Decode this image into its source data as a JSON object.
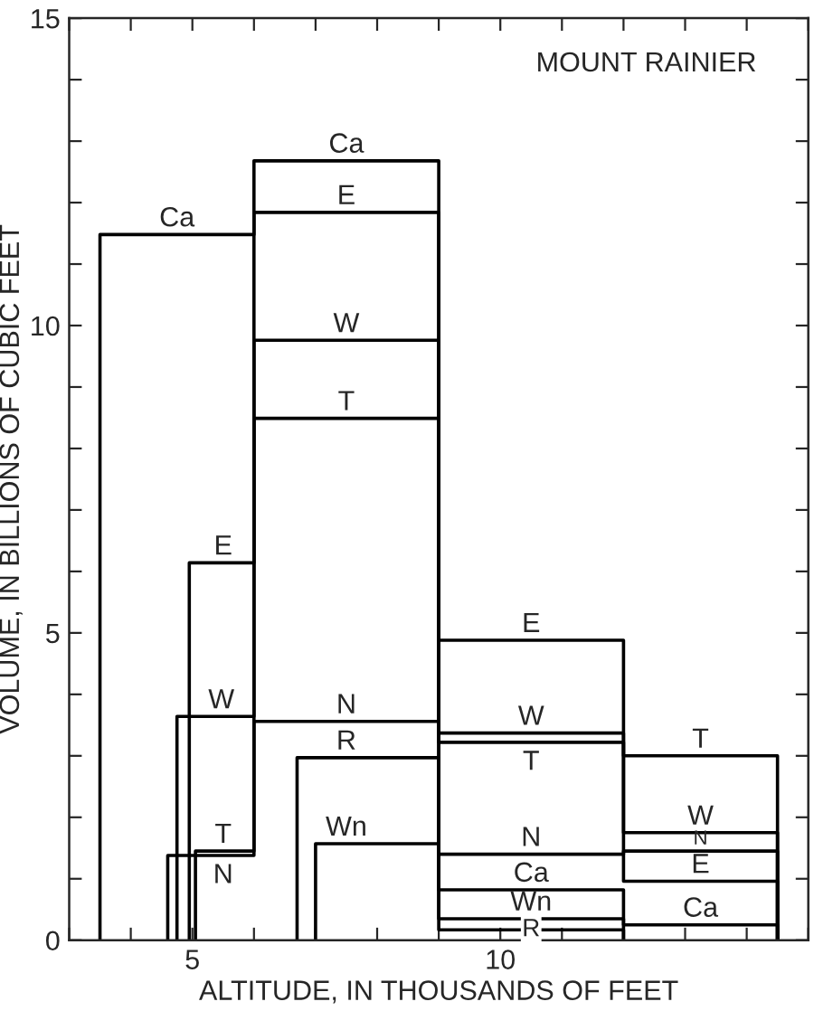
{
  "chart_data": {
    "type": "step",
    "title": "MOUNT RAINIER",
    "xlabel": "ALTITUDE, IN THOUSANDS OF FEET",
    "ylabel": "VOLUME, IN BILLIONS OF CUBIC FEET",
    "xlim": [
      3,
      15
    ],
    "ylim": [
      0,
      15
    ],
    "xticks": [
      {
        "value": 3,
        "label": null
      },
      {
        "value": 4,
        "label": null
      },
      5,
      {
        "value": 6,
        "label": null
      },
      {
        "value": 7,
        "label": null
      },
      {
        "value": 8,
        "label": null
      },
      {
        "value": 9,
        "label": null
      },
      10,
      {
        "value": 11,
        "label": null
      },
      {
        "value": 12,
        "label": null
      },
      {
        "value": 13,
        "label": null
      },
      {
        "value": 14,
        "label": null
      },
      {
        "value": 15,
        "label": null
      }
    ],
    "yticks": [
      0,
      {
        "value": 1,
        "label": null
      },
      {
        "value": 2,
        "label": null
      },
      {
        "value": 3,
        "label": null
      },
      {
        "value": 4,
        "label": null
      },
      5,
      {
        "value": 6,
        "label": null
      },
      {
        "value": 7,
        "label": null
      },
      {
        "value": 8,
        "label": null
      },
      {
        "value": 9,
        "label": null
      },
      10,
      {
        "value": 11,
        "label": null
      },
      {
        "value": 12,
        "label": null
      },
      {
        "value": 13,
        "label": null
      },
      {
        "value": 14,
        "label": null
      },
      15
    ],
    "grid": false,
    "legend": false,
    "series": [
      {
        "color": "#000000",
        "x": [
          3.5,
          3.5,
          6,
          9,
          12,
          14.5
        ],
        "values": [
          0,
          11.48,
          12.68,
          0.82,
          0.25,
          0
        ]
      },
      {
        "color": "#000000",
        "x": [
          4.95,
          4.95,
          6,
          9,
          12,
          14.5
        ],
        "values": [
          0,
          6.14,
          11.84,
          4.88,
          0.96,
          0
        ]
      },
      {
        "color": "#000000",
        "x": [
          4.75,
          4.75,
          6,
          9,
          12,
          14.5
        ],
        "values": [
          0,
          3.64,
          9.76,
          3.37,
          1.75,
          0
        ]
      },
      {
        "color": "#000000",
        "x": [
          5.05,
          5.05,
          6,
          9,
          12,
          14.5
        ],
        "values": [
          0,
          1.45,
          8.49,
          3.22,
          3.0,
          0
        ]
      },
      {
        "color": "#000000",
        "x": [
          4.6,
          4.6,
          6,
          9,
          12,
          14.5
        ],
        "values": [
          0,
          1.38,
          3.56,
          1.4,
          1.45,
          0
        ]
      },
      {
        "color": "#000000",
        "x": [
          6.7,
          6.7,
          9,
          12
        ],
        "values": [
          0,
          2.97,
          0.17,
          0
        ]
      },
      {
        "color": "#000000",
        "x": [
          7.0,
          7.0,
          9,
          12
        ],
        "values": [
          0,
          1.57,
          0.35,
          0
        ]
      }
    ],
    "annotations": [
      {
        "text": "Ca",
        "x": 4.75,
        "y": 11.48
      },
      {
        "text": "Ca",
        "x": 7.5,
        "y": 12.68
      },
      {
        "text": "E",
        "x": 7.5,
        "y": 11.84
      },
      {
        "text": "W",
        "x": 7.5,
        "y": 9.76
      },
      {
        "text": "T",
        "x": 7.5,
        "y": 8.49
      },
      {
        "text": "E",
        "x": 5.5,
        "y": 6.14
      },
      {
        "text": "W",
        "x": 5.47,
        "y": 3.64
      },
      {
        "text": "N",
        "x": 7.5,
        "y": 3.56
      },
      {
        "text": "R",
        "x": 7.5,
        "y": 2.97
      },
      {
        "text": "Wn",
        "x": 7.5,
        "y": 1.57
      },
      {
        "text": "T",
        "x": 5.5,
        "y": 1.45
      },
      {
        "text": "N",
        "x": 5.5,
        "y": 1.38
      },
      {
        "text": "E",
        "x": 10.5,
        "y": 4.88
      },
      {
        "text": "W",
        "x": 10.5,
        "y": 3.37
      },
      {
        "text": "T",
        "x": 10.5,
        "y": 3.22
      },
      {
        "text": "N",
        "x": 10.5,
        "y": 1.4
      },
      {
        "text": "Ca",
        "x": 10.5,
        "y": 0.82
      },
      {
        "text": "Wn",
        "x": 10.5,
        "y": 0.35
      },
      {
        "text": "R",
        "x": 10.5,
        "y": 0.17
      },
      {
        "text": "T",
        "x": 13.25,
        "y": 3.0
      },
      {
        "text": "W",
        "x": 13.25,
        "y": 1.75
      },
      {
        "text": "N",
        "x": 13.25,
        "y": 1.45
      },
      {
        "text": "E",
        "x": 13.25,
        "y": 0.96
      },
      {
        "text": "Ca",
        "x": 13.25,
        "y": 0.25
      }
    ]
  }
}
